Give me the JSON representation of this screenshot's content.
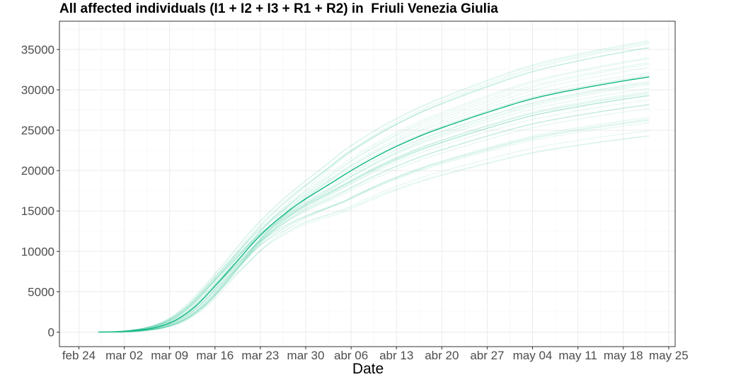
{
  "chart_data": {
    "type": "line",
    "title": "All affected individuals (I1 + I2 + I3 + R1 + R2) in  Friuli Venezia Giulia",
    "xlabel": "Date",
    "ylabel": "",
    "x_ticks": [
      "feb 24",
      "mar 02",
      "mar 09",
      "mar 16",
      "mar 23",
      "mar 30",
      "abr 06",
      "abr 13",
      "abr 20",
      "abr 27",
      "may 04",
      "may 11",
      "may 18",
      "may 25"
    ],
    "y_ticks": [
      0,
      5000,
      10000,
      15000,
      20000,
      25000,
      30000,
      35000
    ],
    "xlim": [
      "2020-02-21",
      "2020-05-26"
    ],
    "ylim": [
      -1800,
      38500
    ],
    "grid": true,
    "legend": "none",
    "colors": {
      "main": "#12b886",
      "ensemble": "#12b886"
    },
    "series": [
      {
        "role": "central",
        "x_start": "2020-02-27",
        "x_end": "2020-05-22",
        "final_value": 31600,
        "points": [
          [
            "2020-02-27",
            0
          ],
          [
            "2020-03-01",
            30
          ],
          [
            "2020-03-04",
            200
          ],
          [
            "2020-03-07",
            600
          ],
          [
            "2020-03-10",
            1500
          ],
          [
            "2020-03-13",
            3200
          ],
          [
            "2020-03-16",
            5700
          ],
          [
            "2020-03-19",
            8400
          ],
          [
            "2020-03-23",
            12000
          ],
          [
            "2020-03-27",
            14800
          ],
          [
            "2020-03-30",
            16500
          ],
          [
            "2020-04-03",
            18500
          ],
          [
            "2020-04-06",
            20000
          ],
          [
            "2020-04-10",
            21800
          ],
          [
            "2020-04-13",
            23000
          ],
          [
            "2020-04-17",
            24400
          ],
          [
            "2020-04-20",
            25300
          ],
          [
            "2020-04-27",
            27200
          ],
          [
            "2020-05-04",
            28900
          ],
          [
            "2020-05-11",
            30100
          ],
          [
            "2020-05-18",
            31100
          ],
          [
            "2020-05-22",
            31600
          ]
        ]
      }
    ],
    "ensemble": {
      "count": 40,
      "x_start": "2020-02-27",
      "x_end": "2020-05-22",
      "final_min": 24300,
      "final_max": 36100
    }
  }
}
